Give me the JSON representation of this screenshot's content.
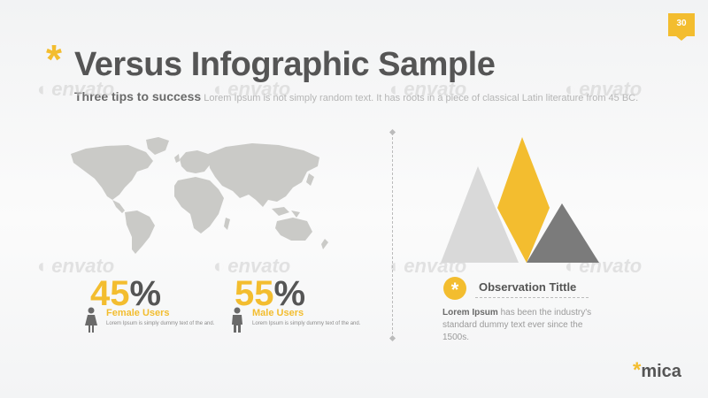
{
  "page_number": "30",
  "title": {
    "star": "*",
    "text": "Versus Infographic Sample"
  },
  "subtitle": {
    "lead": "Three tips to success",
    "text": "Lorem Ipsum is not simply random text. It has roots in a piece of classical Latin literature from 45 BC."
  },
  "watermark_text": "envato",
  "stats": [
    {
      "digits": "45",
      "percent_sign": "%",
      "value": 45,
      "label": "Female Users",
      "description": "Lorem Ipsum is simply dummy text of the and.",
      "icon": "female-user-icon"
    },
    {
      "digits": "55",
      "percent_sign": "%",
      "value": 55,
      "label": "Male Users",
      "description": "Lorem Ipsum is simply dummy text of the and.",
      "icon": "male-user-icon"
    }
  ],
  "triangles": [
    {
      "name": "light-gray-triangle",
      "color": "#d9d9d9"
    },
    {
      "name": "yellow-triangle",
      "color": "#f3bd2f"
    },
    {
      "name": "dark-gray-triangle",
      "color": "#7b7b7b"
    }
  ],
  "observation": {
    "icon": "star-icon",
    "symbol": "*",
    "title": "Observation Tittle",
    "lead": "Lorem Ipsum",
    "text": "has been the industry's standard dummy text ever since the 1500s."
  },
  "brand": {
    "star": "*",
    "name": "mica"
  },
  "colors": {
    "accent": "#f3bd2f",
    "dark": "#555555",
    "map": "#cacac7"
  }
}
